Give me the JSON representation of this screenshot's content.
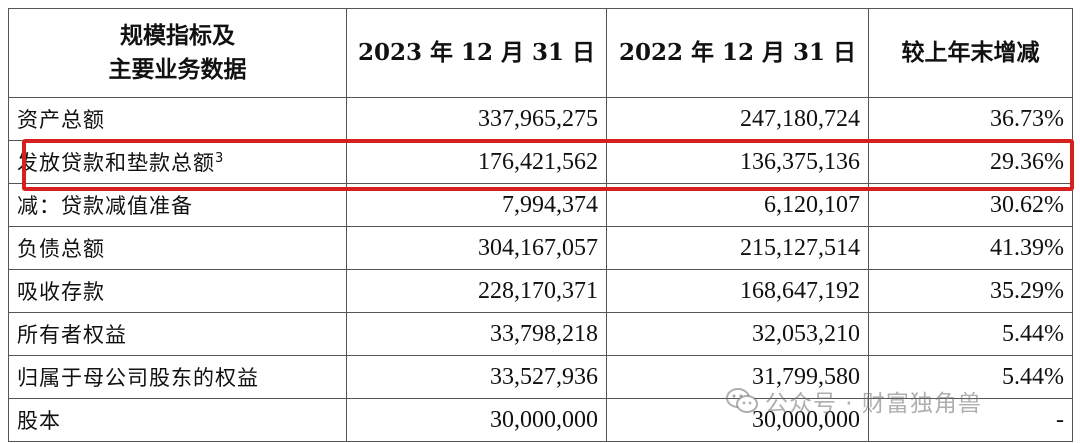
{
  "header": {
    "col1_line1": "规模指标及",
    "col1_line2": "主要业务数据",
    "col2": "2023 年 12 月 31 日",
    "col3": "2022 年 12 月 31 日",
    "col4": "较上年末增减"
  },
  "rows": [
    {
      "label": "资产总额",
      "v2023": "337,965,275",
      "v2022": "247,180,724",
      "change": "36.73%"
    },
    {
      "label": "发放贷款和垫款总额",
      "note": "3",
      "v2023": "176,421,562",
      "v2022": "136,375,136",
      "change": "29.36%"
    },
    {
      "label": "减：贷款减值准备",
      "v2023": "7,994,374",
      "v2022": "6,120,107",
      "change": "30.62%"
    },
    {
      "label": "负债总额",
      "v2023": "304,167,057",
      "v2022": "215,127,514",
      "change": "41.39%"
    },
    {
      "label": "吸收存款",
      "v2023": "228,170,371",
      "v2022": "168,647,192",
      "change": "35.29%"
    },
    {
      "label": "所有者权益",
      "v2023": "33,798,218",
      "v2022": "32,053,210",
      "change": "5.44%"
    },
    {
      "label": "归属于母公司股东的权益",
      "v2023": "33,527,936",
      "v2022": "31,799,580",
      "change": "5.44%"
    },
    {
      "label": "股本",
      "v2023": "30,000,000",
      "v2022": "30,000,000",
      "change": "-"
    }
  ],
  "watermark": {
    "text": "公众号 · 财富独角兽",
    "icon": "wechat-icon"
  },
  "colors": {
    "highlight": "#d62020",
    "border": "#555555",
    "text": "#111111"
  }
}
